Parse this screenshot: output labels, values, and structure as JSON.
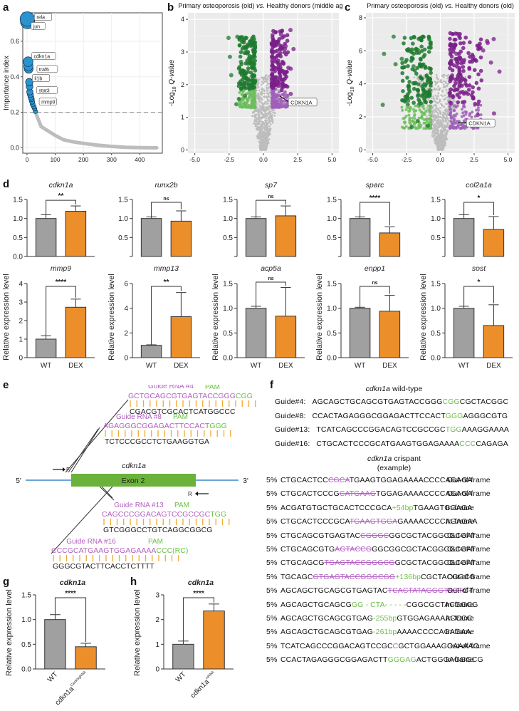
{
  "panels": {
    "a": "a",
    "b": "b",
    "c": "c",
    "d": "d",
    "e": "e",
    "f": "f",
    "g": "g",
    "h": "h"
  },
  "colors": {
    "gray_bar": "#a0a0a0",
    "orange_bar": "#ec8f2b",
    "blue_point": "#2a94d0",
    "green_dark": "#1f7a2e",
    "green_light": "#6cbe5a",
    "purple_dark": "#7a1f8a",
    "purple_light": "#a060b8",
    "grey_point": "#bdbdbd",
    "exon": "#6ab23a",
    "guide_text": "#b25fc0",
    "pam_text": "#6cbf46",
    "match_bar": "#f0a830",
    "line_blue": "#3a87c8"
  },
  "chart_data": [
    {
      "id": "a",
      "type": "scatter",
      "title": "",
      "xlabel": "DNB gene rank",
      "ylabel": "Importance index",
      "xlim": [
        -15,
        480
      ],
      "ylim": [
        -0.03,
        0.76
      ],
      "xticks": [
        "0",
        "100",
        "200",
        "300",
        "400"
      ],
      "yticks": [
        "0.0",
        "0.2",
        "0.4",
        "0.6"
      ],
      "threshold": 0.2,
      "highlighted_points": [
        {
          "rank": 1,
          "value": 0.725,
          "label": "rela"
        },
        {
          "rank": 2,
          "value": 0.71,
          "label": "jun"
        },
        {
          "rank": 4,
          "value": 0.485,
          "label": "cdkn1a"
        },
        {
          "rank": 5,
          "value": 0.46,
          "label": "traf6"
        },
        {
          "rank": 6,
          "value": 0.445,
          "label": "il1b"
        },
        {
          "rank": 8,
          "value": 0.37,
          "label": ""
        },
        {
          "rank": 9,
          "value": 0.345,
          "label": "stat3"
        },
        {
          "rank": 10,
          "value": 0.315,
          "label": ""
        },
        {
          "rank": 12,
          "value": 0.3,
          "label": ""
        },
        {
          "rank": 14,
          "value": 0.285,
          "label": ""
        },
        {
          "rank": 16,
          "value": 0.275,
          "label": ""
        },
        {
          "rank": 18,
          "value": 0.26,
          "label": "mmp9"
        },
        {
          "rank": 20,
          "value": 0.245,
          "label": ""
        },
        {
          "rank": 24,
          "value": 0.232,
          "label": ""
        },
        {
          "rank": 27,
          "value": 0.22,
          "label": ""
        },
        {
          "rank": 30,
          "value": 0.205,
          "label": ""
        }
      ],
      "tail_curve": [
        [
          30,
          0.2
        ],
        [
          40,
          0.16
        ],
        [
          50,
          0.12
        ],
        [
          70,
          0.1
        ],
        [
          100,
          0.07
        ],
        [
          130,
          0.045
        ],
        [
          160,
          0.035
        ],
        [
          200,
          0.025
        ],
        [
          250,
          0.015
        ],
        [
          300,
          0.008
        ],
        [
          350,
          0.003
        ],
        [
          400,
          0.001
        ],
        [
          460,
          0.0
        ]
      ]
    },
    {
      "id": "b",
      "type": "scatter",
      "title": "Primary osteoporosis (old) vs. Healthy donors (middle age)",
      "title_parts": [
        "Primary osteoporosis (old) ",
        "vs.",
        " Healthy donors (middle age)"
      ],
      "xlabel": "Log2 fold change",
      "ylabel": "-Log10 Q-value",
      "xlim": [
        -5.5,
        5.5
      ],
      "ylim": [
        -0.1,
        4.2
      ],
      "xticks": [
        "-5.0",
        "-2.5",
        "0.0",
        "2.5",
        "5.0"
      ],
      "yticks": [
        "0",
        "1",
        "2",
        "3",
        "4"
      ],
      "down_range": {
        "x": [
          -2.6,
          -0.6
        ],
        "y": [
          1.3,
          3.5
        ]
      },
      "up_range": {
        "x": [
          0.6,
          2.6
        ],
        "y": [
          1.3,
          3.7
        ]
      },
      "label": {
        "text": "CDKN1A",
        "x": 1.2,
        "y": 1.65
      }
    },
    {
      "id": "c",
      "type": "scatter",
      "title": "Primary osteoporosis (old) vs. Healthy donors (old)",
      "title_parts": [
        "Primary osteoporosis (old) ",
        "vs.",
        " Healthy donors (old)"
      ],
      "xlabel": "Log2 fold change",
      "ylabel": "-Log10 Q-value",
      "xlim": [
        -5.5,
        5.5
      ],
      "ylim": [
        -0.2,
        8.3
      ],
      "xticks": [
        "-5.0",
        "-2.5",
        "0.0",
        "2.5",
        "5.0"
      ],
      "yticks": [
        "0",
        "2",
        "4",
        "6",
        "8"
      ],
      "down_range": {
        "x": [
          -4.3,
          -0.7
        ],
        "y": [
          1.3,
          6.9
        ]
      },
      "up_range": {
        "x": [
          0.7,
          4.6
        ],
        "y": [
          1.3,
          7.1
        ]
      },
      "label": {
        "text": "CDKN1A",
        "x": 1.3,
        "y": 1.65
      }
    },
    {
      "id": "d",
      "type": "bar",
      "ylabel": "Relative expression level",
      "categories": [
        "WT",
        "DEX"
      ],
      "subplots": [
        {
          "gene": "cdkn1a",
          "values": [
            1.0,
            1.19
          ],
          "errors": [
            0.1,
            0.14
          ],
          "sig": "**",
          "ylim": [
            0,
            1.5
          ],
          "yticks": [
            "0.0",
            "0.5",
            "1.0",
            "1.5"
          ]
        },
        {
          "gene": "runx2b",
          "values": [
            1.0,
            0.93
          ],
          "errors": [
            0.04,
            0.27
          ],
          "sig": "ns",
          "ylim": [
            0,
            1.5
          ],
          "yticks": [
            "",
            "0.5",
            "1.0",
            "1.5"
          ]
        },
        {
          "gene": "sp7",
          "values": [
            1.0,
            1.07
          ],
          "errors": [
            0.04,
            0.26
          ],
          "sig": "ns",
          "ylim": [
            0,
            1.5
          ],
          "yticks": [
            "",
            "0.5",
            "1.0",
            "1.5"
          ]
        },
        {
          "gene": "sparc",
          "values": [
            1.0,
            0.62
          ],
          "errors": [
            0.04,
            0.16
          ],
          "sig": "****",
          "ylim": [
            0,
            1.5
          ],
          "yticks": [
            "",
            "0.5",
            "1.0",
            "1.5"
          ]
        },
        {
          "gene": "col2a1a",
          "values": [
            1.0,
            0.71
          ],
          "errors": [
            0.1,
            0.34
          ],
          "sig": "*",
          "ylim": [
            0,
            1.5
          ],
          "yticks": [
            "",
            "0.5",
            "1.0",
            "1.5"
          ]
        },
        {
          "gene": "mmp9",
          "values": [
            1.0,
            2.72
          ],
          "errors": [
            0.18,
            0.44
          ],
          "sig": "****",
          "ylim": [
            0,
            4
          ],
          "yticks": [
            "0",
            "1",
            "2",
            "3",
            "4"
          ]
        },
        {
          "gene": "mmp13",
          "values": [
            1.0,
            3.32
          ],
          "errors": [
            0.04,
            1.95
          ],
          "sig": "**",
          "ylim": [
            0,
            6
          ],
          "yticks": [
            "0",
            "2",
            "4",
            "6"
          ]
        },
        {
          "gene": "acp5a",
          "values": [
            1.0,
            0.84
          ],
          "errors": [
            0.04,
            0.58
          ],
          "sig": "ns",
          "ylim": [
            0,
            1.5
          ],
          "yticks": [
            "0.0",
            "0.5",
            "1.0",
            "1.5"
          ]
        },
        {
          "gene": "enpp1",
          "values": [
            1.0,
            0.94
          ],
          "errors": [
            0.02,
            0.32
          ],
          "sig": "ns",
          "ylim": [
            0,
            1.5
          ],
          "yticks": [
            "0.0",
            "0.5",
            "1.0",
            "1.5"
          ]
        },
        {
          "gene": "sost",
          "values": [
            1.0,
            0.65
          ],
          "errors": [
            0.04,
            0.42
          ],
          "sig": "*",
          "ylim": [
            0,
            1.5
          ],
          "yticks": [
            "0.0",
            "0.5",
            "1.0",
            "1.5"
          ]
        }
      ]
    },
    {
      "id": "g",
      "type": "bar",
      "title": "cdkn1a",
      "ylabel": "Relative expression level",
      "categories": [
        "WT",
        "cdkn1a"
      ],
      "category_superscript": [
        "",
        "Cas9/sgRNA"
      ],
      "values": [
        1.0,
        0.45
      ],
      "errors": [
        0.1,
        0.07
      ],
      "sig": "****",
      "ylim": [
        0,
        1.5
      ],
      "yticks": [
        "0.0",
        "0.5",
        "1.0",
        "1.5"
      ]
    },
    {
      "id": "h",
      "type": "bar",
      "title": "cdkn1a",
      "ylabel": "Relative expression level",
      "categories": [
        "WT",
        "cdkn1a"
      ],
      "category_superscript": [
        "",
        "mRNA"
      ],
      "values": [
        1.0,
        2.35
      ],
      "errors": [
        0.13,
        0.28
      ],
      "sig": "****",
      "ylim": [
        0,
        3
      ],
      "yticks": [
        "0",
        "1",
        "2",
        "3"
      ]
    }
  ],
  "panel_e": {
    "gene": "cdkn1a",
    "exon": "Exon 2",
    "five": "5'",
    "three": "3'",
    "fwd": "F",
    "rev": "R",
    "guides": [
      {
        "name": "Guide RNA #4",
        "pam_label": "PAM",
        "seq": "GCTGCAGCGTGAGTACCGGG",
        "pam": "CGG",
        "comp": "CGACGTCGCACTCATGGCCC"
      },
      {
        "name": "Guide RNA #8",
        "pam_label": "PAM",
        "seq": "AGAGGGCGGAGACTTCCACT",
        "pam": "GGG",
        "comp": "TCTCCCGCCTCTGAAGGTGA"
      },
      {
        "name": "Guide RNA #13",
        "pam_label": "PAM",
        "seq": "CAGCCCGGACAGTCCGCCGC",
        "pam": "TGG",
        "comp": "GTCGGGCCTGTCAGGCGGCG"
      },
      {
        "name": "Guide RNA #16",
        "pam_label": "PAM",
        "seq": "CCCGCATGAAGTGGAGAAAA",
        "pam": "CCC(RC)",
        "comp": "GGGCGTACTTCACCTCTTTT"
      }
    ]
  },
  "panel_f": {
    "wt_title_gene": "cdkn1a",
    "wt_title_rest": " wild-type",
    "wt": [
      {
        "label": "Guide#4:",
        "parts": [
          [
            "AGCAGCTGCAGCGTGAGTACCGGG",
            ""
          ],
          [
            "CGG",
            "g"
          ],
          [
            "CGCTACGGC",
            ""
          ]
        ]
      },
      {
        "label": "Guide#8:",
        "parts": [
          [
            "CCACTAGAGGGCGGAGACTTCCACT",
            ""
          ],
          [
            "GGG",
            "g"
          ],
          [
            "AGGGCGTG",
            ""
          ]
        ]
      },
      {
        "label": "Guide#13:",
        "parts": [
          [
            "TCATCAGCCCGGACAGTCCGCCGC",
            ""
          ],
          [
            "TGG",
            "g"
          ],
          [
            "AAAGGAAAA",
            ""
          ]
        ]
      },
      {
        "label": "Guide#16:",
        "parts": [
          [
            "CTGCACTCCCGCATGAAGTGGAGAAAA",
            ""
          ],
          [
            "CCC",
            "g"
          ],
          [
            "CAGAGA",
            ""
          ]
        ]
      }
    ],
    "crispant_title_gene": "cdkn1a",
    "crispant_title_rest": " crispant",
    "crispant_subtitle": "(example)",
    "rows": [
      {
        "pct": "5%",
        "parts": [
          [
            "CTGCACTCC",
            ""
          ],
          [
            "CGCA",
            "ms"
          ],
          [
            "TGAAGTGGAGAAAACCCCAGAGA",
            ""
          ]
        ],
        "frame": "Out-of-frame"
      },
      {
        "pct": "5%",
        "parts": [
          [
            "CTGCACTCCCG",
            ""
          ],
          [
            "CATGAAG",
            "ms"
          ],
          [
            "TGGAGAAAACCCCAGAGA",
            ""
          ]
        ],
        "frame": "Out-of-frame"
      },
      {
        "pct": "5%",
        "parts": [
          [
            "ACGATGTGCTGCACTCCCGCA",
            ""
          ],
          [
            "+54bp",
            "g"
          ],
          [
            "TGAAGTGGAGA",
            ""
          ]
        ],
        "frame": "In-frame"
      },
      {
        "pct": "5%",
        "parts": [
          [
            "CTGCACTCCCGCA",
            ""
          ],
          [
            "TGAAGTGGA",
            "ms"
          ],
          [
            "GAAAACCCCAGAGAA",
            ""
          ]
        ],
        "frame": "In-frame"
      },
      {
        "pct": "5%",
        "parts": [
          [
            "CTGCAGCGTGAGTAC",
            ""
          ],
          [
            "CGGGC",
            "ms"
          ],
          [
            "GGCGCTACGGCGCGAT",
            ""
          ]
        ],
        "frame": "Out-of-frame"
      },
      {
        "pct": "5%",
        "parts": [
          [
            "CTGCAGCGTG",
            ""
          ],
          [
            "AGTACCG",
            "ms"
          ],
          [
            "GGCGGCGCTACGGCGCGAT",
            ""
          ]
        ],
        "frame": "Out-of-frame"
      },
      {
        "pct": "5%",
        "parts": [
          [
            "CTGCAGCG",
            ""
          ],
          [
            "TGAGTACCGGGCG",
            "ms"
          ],
          [
            "GCGCTACGGCGCGAT",
            ""
          ]
        ],
        "frame": "Out-of-frame"
      },
      {
        "pct": "5%",
        "parts": [
          [
            "TGCAGC",
            ""
          ],
          [
            "GTGAGTACCGGGCGG",
            "ms"
          ],
          [
            "+136bp",
            "g"
          ],
          [
            "CGCTACGGCG",
            ""
          ]
        ],
        "frame": "Out-of-frame"
      },
      {
        "pct": "5%",
        "parts": [
          [
            "AGCAGCTGCAGCGTGAGTAC",
            ""
          ],
          [
            "TCACTATAGGGTACT",
            "ms"
          ],
          [
            "CT",
            ""
          ]
        ],
        "frame": "Out-of-frame"
      },
      {
        "pct": "5%",
        "parts": [
          [
            "AGCAGCTGCAGCG",
            ""
          ],
          [
            "GG - CTA- - - - -",
            "g"
          ],
          [
            "CGGCGCTACGGCG",
            ""
          ]
        ],
        "frame": "In-frame"
      },
      {
        "pct": "5%",
        "parts": [
          [
            "AGCAGCTGCAGCGTGAG",
            ""
          ],
          [
            "-255bp",
            "g"
          ],
          [
            "GTGGAGAAAACCCC",
            ""
          ]
        ],
        "frame": "In-frame"
      },
      {
        "pct": "5%",
        "parts": [
          [
            "AGCAGCTGCAGCGTGAG",
            ""
          ],
          [
            "-261bp",
            "g"
          ],
          [
            "AAAACCCCAGAGAA",
            ""
          ]
        ],
        "frame": "In-frame"
      },
      {
        "pct": "5%",
        "parts": [
          [
            "TCATCAGCCCGGACAGTCCGC",
            ""
          ],
          [
            "C",
            "m"
          ],
          [
            "GCTGGAAAGGAAAAC",
            ""
          ]
        ],
        "frame": "Out-of-frame"
      },
      {
        "pct": "5%",
        "parts": [
          [
            "CCACTAGAGGGCGGAGACTT",
            ""
          ],
          [
            "GGGAG",
            "g"
          ],
          [
            "ACTGGGAGGGCG",
            ""
          ]
        ],
        "frame": "In-frame"
      }
    ]
  }
}
